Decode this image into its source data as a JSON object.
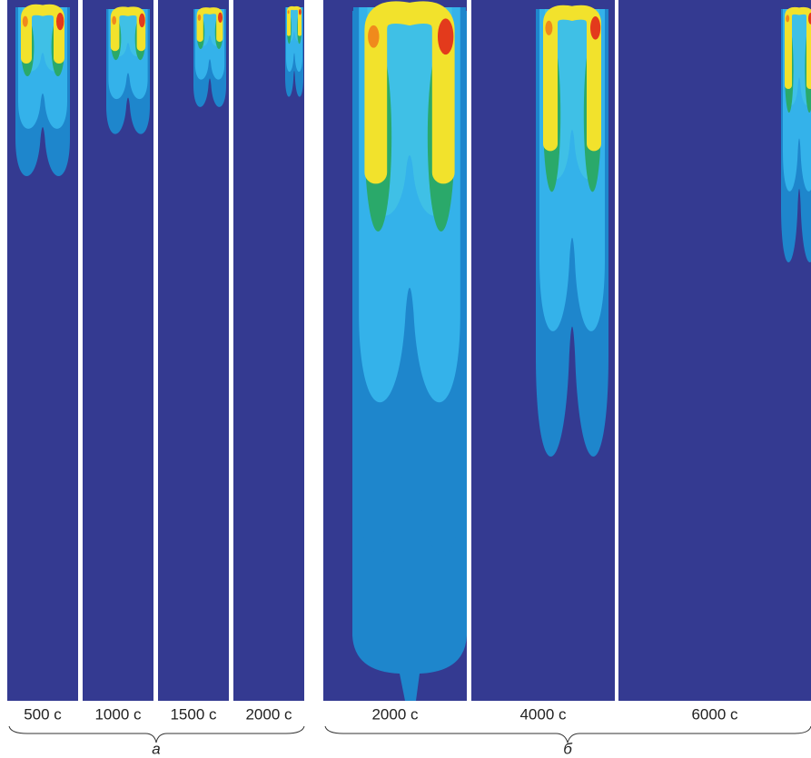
{
  "panels": {
    "a": {
      "labels": [
        "500 с",
        "1000 с",
        "1500 с",
        "2000 с"
      ],
      "caption": "а"
    },
    "b": {
      "labels": [
        "2000 с",
        "4000 с",
        "6000 с"
      ],
      "caption": "б"
    }
  }
}
